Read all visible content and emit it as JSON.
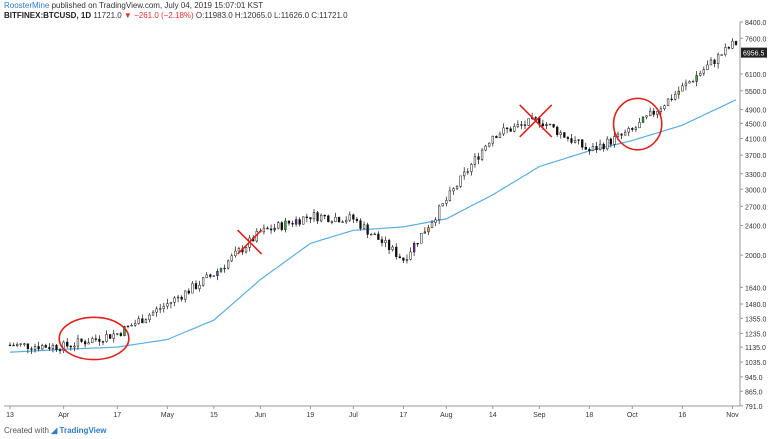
{
  "header": {
    "author": "RoosterMine",
    "published": "published on TradingView.com, July 04, 2019 15:07:01 KST",
    "symbol": "BITFINEX:BTCUSD, 1D",
    "last": "11721.0",
    "change": "−261.0 (−2.18%)",
    "ohlc": "O:11983.0 H:12065.0 L:11626.0 C:11721.0"
  },
  "footer": {
    "created_with": "Created with",
    "brand": "TradingView"
  },
  "colors": {
    "up_candle": "#ffffff",
    "down_candle": "#111111",
    "green_candle": "#33b04a",
    "purple_candle": "#6b3aa0",
    "orange_candle": "#f0a020",
    "moving_average": "#5aaee0",
    "annotation": "#e0201b",
    "last_price_box": "#222222"
  },
  "chart_data": {
    "type": "candlestick",
    "y_scale": "log",
    "ylim": [
      790,
      8400
    ],
    "y_ticks": [
      8400,
      7600,
      6100,
      5500,
      4900,
      4500,
      4100,
      3700,
      3300,
      3000,
      2700,
      2400,
      2000,
      1640,
      1480,
      1355,
      1235,
      1135,
      1035,
      945,
      865,
      791
    ],
    "last_price_label": "6956.5",
    "x_ticks": [
      "13",
      "Apr",
      "17",
      "May",
      "15",
      "Jun",
      "19",
      "Jul",
      "17",
      "Aug",
      "14",
      "Sep",
      "18",
      "Oct",
      "16",
      "Nov"
    ],
    "x_tick_bar_index": [
      0,
      15,
      30,
      44,
      57,
      70,
      84,
      96,
      110,
      122,
      135,
      148,
      162,
      174,
      188,
      202
    ],
    "bar_count": 204,
    "series_close_approx": [
      {
        "date": "13",
        "close": 1150
      },
      {
        "date": "Apr",
        "close": 1140
      },
      {
        "date": "17",
        "close": 1235
      },
      {
        "date": "May",
        "close": 1480
      },
      {
        "date": "15",
        "close": 1780
      },
      {
        "date": "Jun",
        "close": 2300
      },
      {
        "date": "19",
        "close": 2550
      },
      {
        "date": "Jul",
        "close": 2500
      },
      {
        "date": "17",
        "close": 1950
      },
      {
        "date": "Aug",
        "close": 2800
      },
      {
        "date": "14",
        "close": 4200
      },
      {
        "date": "Sep",
        "close": 4600
      },
      {
        "date": "18",
        "close": 3800
      },
      {
        "date": "Oct",
        "close": 4300
      },
      {
        "date": "16",
        "close": 5600
      },
      {
        "date": "Nov",
        "close": 7300
      }
    ],
    "moving_average_approx": [
      {
        "date": "13",
        "value": 1100
      },
      {
        "date": "Apr",
        "value": 1120
      },
      {
        "date": "17",
        "value": 1135
      },
      {
        "date": "May",
        "value": 1190
      },
      {
        "date": "15",
        "value": 1340
      },
      {
        "date": "Jun",
        "value": 1720
      },
      {
        "date": "19",
        "value": 2150
      },
      {
        "date": "Jul",
        "value": 2330
      },
      {
        "date": "17",
        "value": 2380
      },
      {
        "date": "Aug",
        "value": 2500
      },
      {
        "date": "14",
        "value": 2900
      },
      {
        "date": "Sep",
        "value": 3450
      },
      {
        "date": "18",
        "value": 3800
      },
      {
        "date": "Oct",
        "value": 4050
      },
      {
        "date": "16",
        "value": 4450
      },
      {
        "date": "Nov",
        "value": 5150
      }
    ],
    "annotations": [
      {
        "shape": "circle",
        "around": "Apr–17"
      },
      {
        "shape": "cross",
        "around": "Jun"
      },
      {
        "shape": "cross",
        "around": "Sep"
      },
      {
        "shape": "circle",
        "around": "Oct"
      }
    ]
  }
}
